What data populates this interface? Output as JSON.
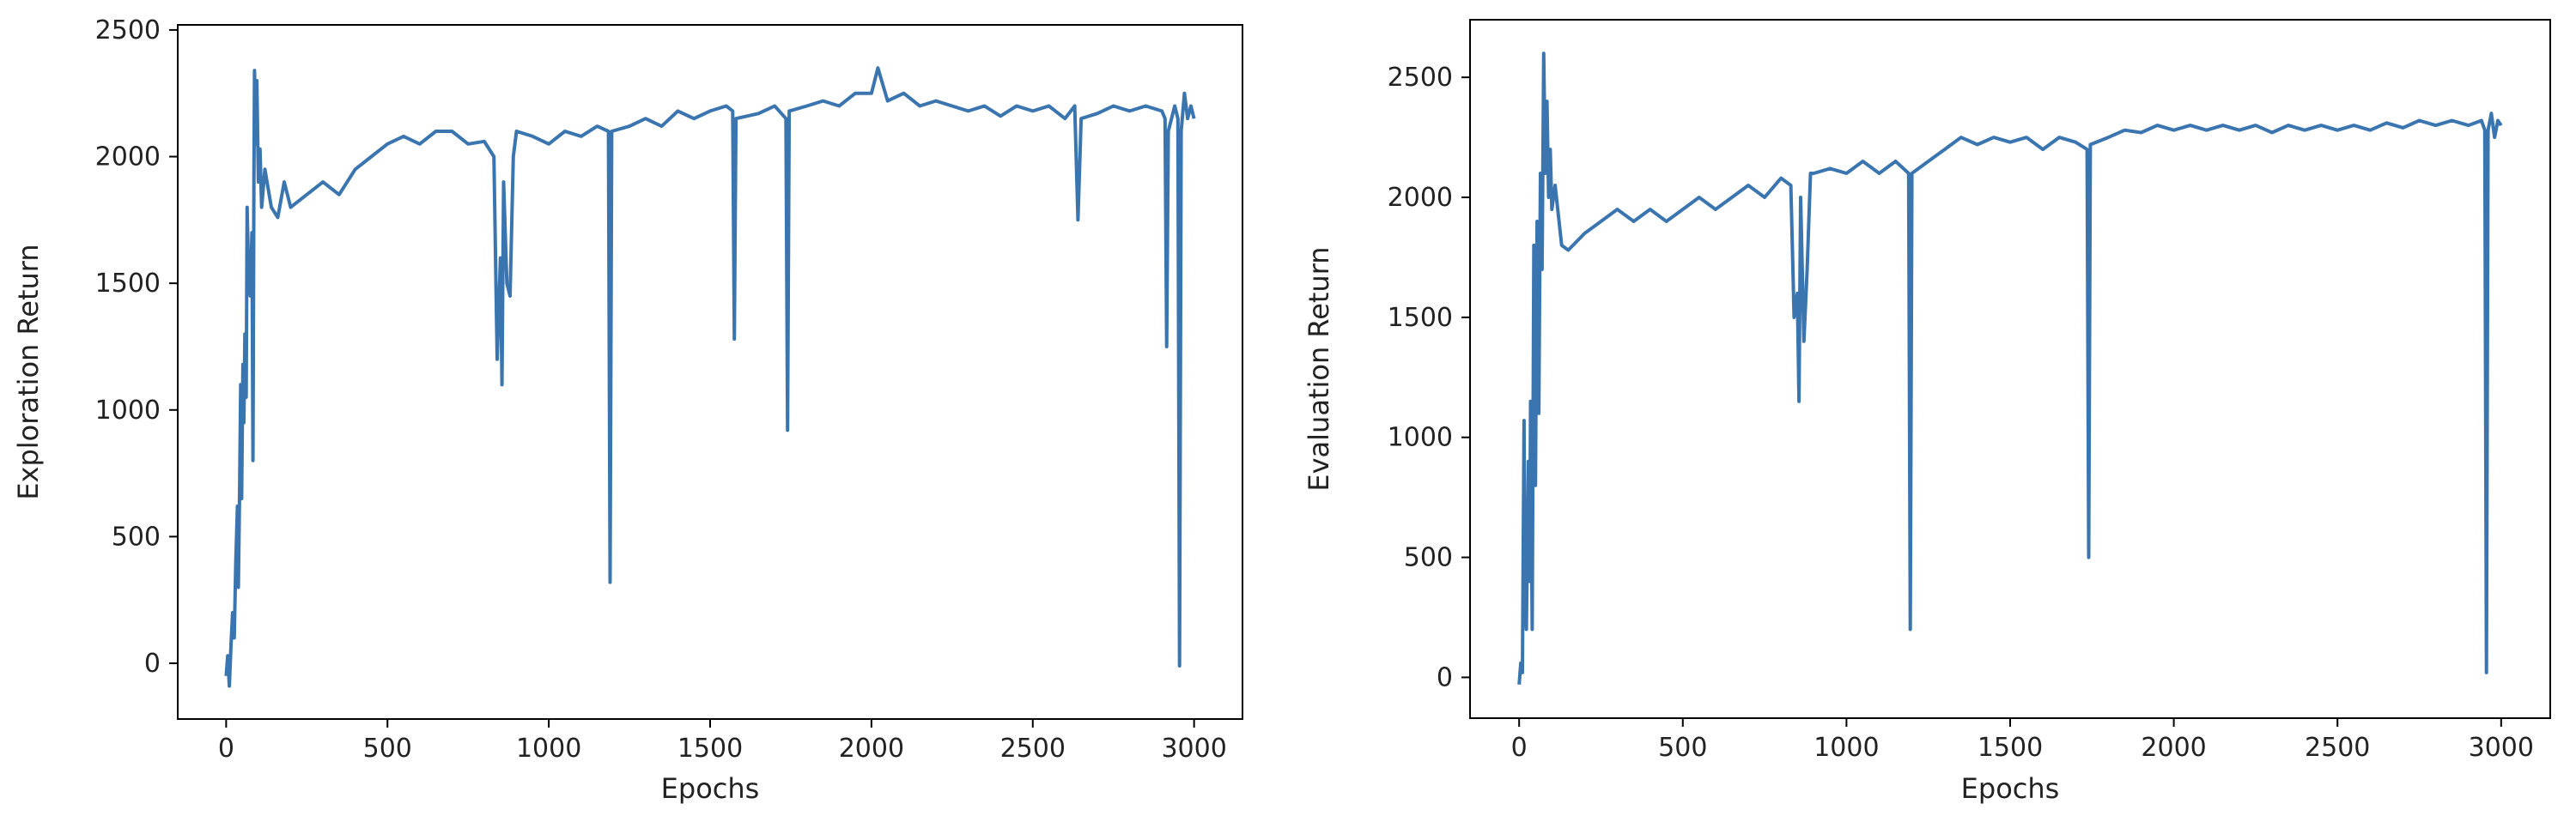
{
  "chart_data": [
    {
      "type": "line",
      "xlabel": "Epochs",
      "ylabel": "Exploration Return",
      "xlim": [
        -150,
        3150
      ],
      "ylim": [
        -220,
        2520
      ],
      "xticks": [
        0,
        500,
        1000,
        1500,
        2000,
        2500,
        3000
      ],
      "yticks": [
        0,
        500,
        1000,
        1500,
        2000,
        2500
      ],
      "line_color": "#3b75af",
      "grid": false,
      "series": [
        {
          "points": [
            [
              0,
              -50
            ],
            [
              5,
              30
            ],
            [
              10,
              -90
            ],
            [
              15,
              70
            ],
            [
              20,
              200
            ],
            [
              25,
              100
            ],
            [
              30,
              400
            ],
            [
              35,
              620
            ],
            [
              38,
              300
            ],
            [
              42,
              700
            ],
            [
              45,
              1100
            ],
            [
              48,
              650
            ],
            [
              52,
              1180
            ],
            [
              55,
              950
            ],
            [
              58,
              1300
            ],
            [
              62,
              1050
            ],
            [
              65,
              1800
            ],
            [
              70,
              1500
            ],
            [
              75,
              1450
            ],
            [
              80,
              1700
            ],
            [
              83,
              800
            ],
            [
              86,
              1900
            ],
            [
              88,
              2340
            ],
            [
              92,
              2050
            ],
            [
              95,
              2300
            ],
            [
              100,
              1900
            ],
            [
              105,
              2030
            ],
            [
              110,
              1800
            ],
            [
              120,
              1950
            ],
            [
              140,
              1800
            ],
            [
              160,
              1760
            ],
            [
              180,
              1900
            ],
            [
              200,
              1800
            ],
            [
              250,
              1850
            ],
            [
              300,
              1900
            ],
            [
              350,
              1850
            ],
            [
              400,
              1950
            ],
            [
              450,
              2000
            ],
            [
              500,
              2050
            ],
            [
              550,
              2080
            ],
            [
              600,
              2050
            ],
            [
              650,
              2100
            ],
            [
              700,
              2100
            ],
            [
              750,
              2050
            ],
            [
              800,
              2060
            ],
            [
              830,
              2000
            ],
            [
              840,
              1200
            ],
            [
              850,
              1600
            ],
            [
              855,
              1100
            ],
            [
              860,
              1900
            ],
            [
              870,
              1500
            ],
            [
              880,
              1450
            ],
            [
              890,
              2000
            ],
            [
              900,
              2100
            ],
            [
              950,
              2080
            ],
            [
              1000,
              2050
            ],
            [
              1050,
              2100
            ],
            [
              1100,
              2080
            ],
            [
              1150,
              2120
            ],
            [
              1185,
              2100
            ],
            [
              1190,
              320
            ],
            [
              1195,
              2100
            ],
            [
              1250,
              2120
            ],
            [
              1300,
              2150
            ],
            [
              1350,
              2120
            ],
            [
              1400,
              2180
            ],
            [
              1450,
              2150
            ],
            [
              1500,
              2180
            ],
            [
              1550,
              2200
            ],
            [
              1570,
              2180
            ],
            [
              1575,
              1280
            ],
            [
              1580,
              2150
            ],
            [
              1650,
              2170
            ],
            [
              1700,
              2200
            ],
            [
              1735,
              2150
            ],
            [
              1740,
              920
            ],
            [
              1745,
              2180
            ],
            [
              1800,
              2200
            ],
            [
              1850,
              2220
            ],
            [
              1900,
              2200
            ],
            [
              1950,
              2250
            ],
            [
              2000,
              2250
            ],
            [
              2020,
              2350
            ],
            [
              2050,
              2220
            ],
            [
              2100,
              2250
            ],
            [
              2150,
              2200
            ],
            [
              2200,
              2220
            ],
            [
              2250,
              2200
            ],
            [
              2300,
              2180
            ],
            [
              2350,
              2200
            ],
            [
              2400,
              2160
            ],
            [
              2450,
              2200
            ],
            [
              2500,
              2180
            ],
            [
              2550,
              2200
            ],
            [
              2600,
              2150
            ],
            [
              2630,
              2200
            ],
            [
              2640,
              1750
            ],
            [
              2650,
              2150
            ],
            [
              2700,
              2170
            ],
            [
              2750,
              2200
            ],
            [
              2800,
              2180
            ],
            [
              2850,
              2200
            ],
            [
              2900,
              2180
            ],
            [
              2910,
              2150
            ],
            [
              2915,
              1250
            ],
            [
              2920,
              2100
            ],
            [
              2940,
              2200
            ],
            [
              2950,
              2150
            ],
            [
              2955,
              -10
            ],
            [
              2960,
              2100
            ],
            [
              2970,
              2250
            ],
            [
              2980,
              2150
            ],
            [
              2990,
              2200
            ],
            [
              3000,
              2150
            ]
          ]
        }
      ]
    },
    {
      "type": "line",
      "xlabel": "Epochs",
      "ylabel": "Evaluation Return",
      "xlim": [
        -150,
        3150
      ],
      "ylim": [
        -170,
        2740
      ],
      "xticks": [
        0,
        500,
        1000,
        1500,
        2000,
        2500,
        3000
      ],
      "yticks": [
        0,
        500,
        1000,
        1500,
        2000,
        2500
      ],
      "line_color": "#3b75af",
      "grid": false,
      "series": [
        {
          "points": [
            [
              0,
              -30
            ],
            [
              5,
              60
            ],
            [
              10,
              20
            ],
            [
              15,
              1070
            ],
            [
              18,
              300
            ],
            [
              22,
              200
            ],
            [
              28,
              900
            ],
            [
              32,
              400
            ],
            [
              35,
              1150
            ],
            [
              40,
              200
            ],
            [
              45,
              1800
            ],
            [
              50,
              800
            ],
            [
              55,
              1900
            ],
            [
              60,
              1100
            ],
            [
              65,
              2100
            ],
            [
              70,
              1700
            ],
            [
              75,
              2600
            ],
            [
              80,
              2100
            ],
            [
              85,
              2400
            ],
            [
              90,
              2000
            ],
            [
              95,
              2200
            ],
            [
              100,
              1950
            ],
            [
              110,
              2050
            ],
            [
              130,
              1800
            ],
            [
              150,
              1780
            ],
            [
              200,
              1850
            ],
            [
              250,
              1900
            ],
            [
              300,
              1950
            ],
            [
              350,
              1900
            ],
            [
              400,
              1950
            ],
            [
              450,
              1900
            ],
            [
              500,
              1950
            ],
            [
              550,
              2000
            ],
            [
              600,
              1950
            ],
            [
              650,
              2000
            ],
            [
              700,
              2050
            ],
            [
              750,
              2000
            ],
            [
              800,
              2080
            ],
            [
              830,
              2050
            ],
            [
              840,
              1500
            ],
            [
              850,
              1600
            ],
            [
              855,
              1150
            ],
            [
              860,
              2000
            ],
            [
              870,
              1400
            ],
            [
              880,
              1700
            ],
            [
              890,
              2100
            ],
            [
              900,
              2100
            ],
            [
              950,
              2120
            ],
            [
              1000,
              2100
            ],
            [
              1050,
              2150
            ],
            [
              1100,
              2100
            ],
            [
              1150,
              2150
            ],
            [
              1190,
              2100
            ],
            [
              1195,
              200
            ],
            [
              1200,
              2100
            ],
            [
              1250,
              2150
            ],
            [
              1300,
              2200
            ],
            [
              1350,
              2250
            ],
            [
              1400,
              2220
            ],
            [
              1450,
              2250
            ],
            [
              1500,
              2230
            ],
            [
              1550,
              2250
            ],
            [
              1600,
              2200
            ],
            [
              1650,
              2250
            ],
            [
              1700,
              2230
            ],
            [
              1735,
              2200
            ],
            [
              1740,
              500
            ],
            [
              1745,
              2220
            ],
            [
              1800,
              2250
            ],
            [
              1850,
              2280
            ],
            [
              1900,
              2270
            ],
            [
              1950,
              2300
            ],
            [
              2000,
              2280
            ],
            [
              2050,
              2300
            ],
            [
              2100,
              2280
            ],
            [
              2150,
              2300
            ],
            [
              2200,
              2280
            ],
            [
              2250,
              2300
            ],
            [
              2300,
              2270
            ],
            [
              2350,
              2300
            ],
            [
              2400,
              2280
            ],
            [
              2450,
              2300
            ],
            [
              2500,
              2280
            ],
            [
              2550,
              2300
            ],
            [
              2600,
              2280
            ],
            [
              2650,
              2310
            ],
            [
              2700,
              2290
            ],
            [
              2750,
              2320
            ],
            [
              2800,
              2300
            ],
            [
              2850,
              2320
            ],
            [
              2900,
              2300
            ],
            [
              2940,
              2320
            ],
            [
              2950,
              2280
            ],
            [
              2955,
              20
            ],
            [
              2960,
              2280
            ],
            [
              2970,
              2350
            ],
            [
              2980,
              2250
            ],
            [
              2990,
              2320
            ],
            [
              3000,
              2300
            ]
          ]
        }
      ]
    }
  ]
}
